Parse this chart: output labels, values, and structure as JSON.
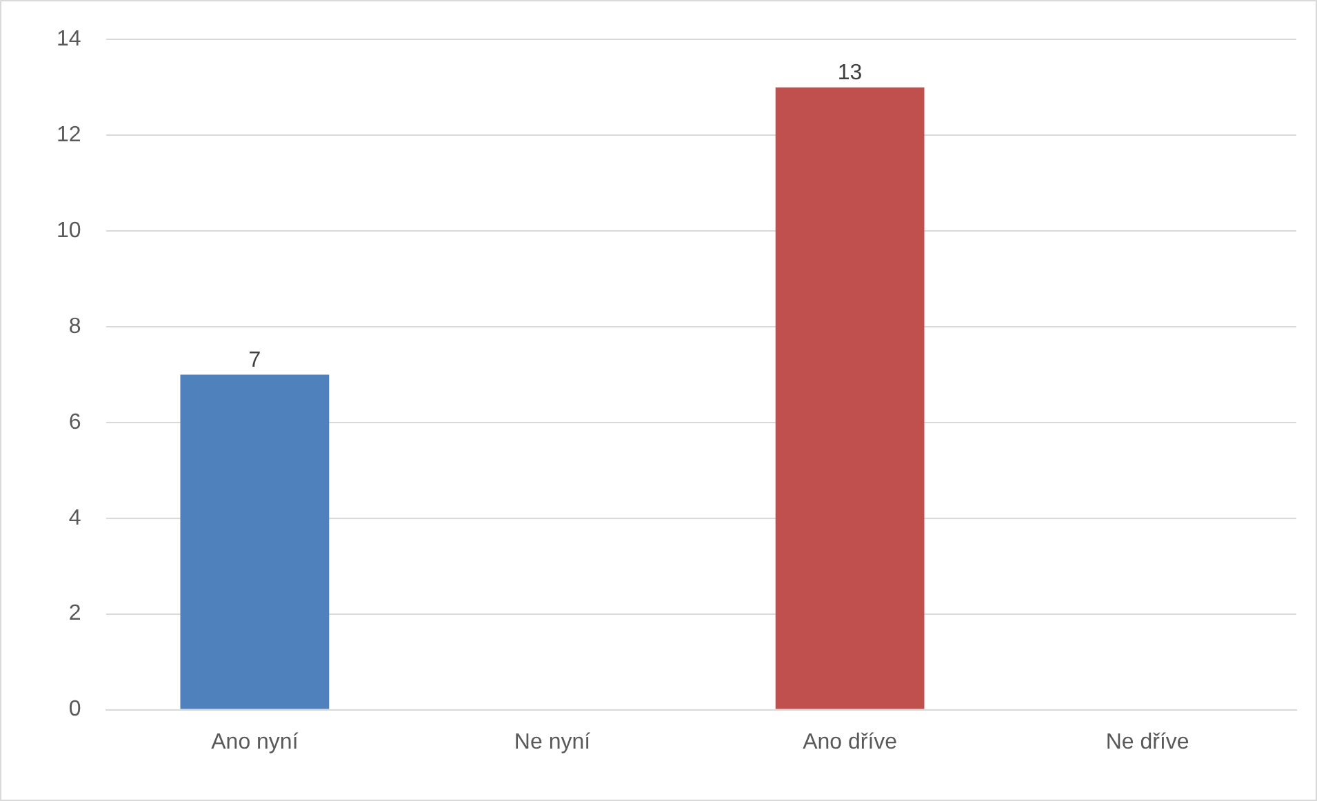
{
  "chart_data": {
    "type": "bar",
    "categories": [
      "Ano nyní",
      "Ne nyní",
      "Ano dříve",
      "Ne dříve"
    ],
    "values": [
      7,
      null,
      13,
      null
    ],
    "colors": [
      "#4f81bd",
      "#4f81bd",
      "#c0504d",
      "#c0504d"
    ],
    "ylim": [
      0,
      14
    ],
    "yticks": [
      0,
      2,
      4,
      6,
      8,
      10,
      12,
      14
    ],
    "grid": "y",
    "legend": false,
    "data_labels": true
  }
}
